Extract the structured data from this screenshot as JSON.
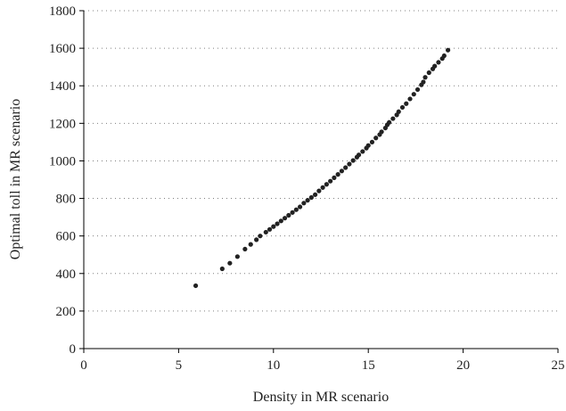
{
  "chart_data": {
    "type": "scatter",
    "title": "",
    "xlabel": "Density in MR scenario",
    "ylabel": "Optimal toll in MR scenario",
    "xlim": [
      0,
      25
    ],
    "ylim": [
      0,
      1800
    ],
    "x_ticks": [
      "0",
      "5",
      "10",
      "15",
      "20",
      "25"
    ],
    "y_ticks": [
      "0",
      "200",
      "400",
      "600",
      "800",
      "1000",
      "1200",
      "1400",
      "1600",
      "1800"
    ],
    "grid": "horizontal-dotted",
    "legend": "none",
    "marker_color": "#222222",
    "series": [
      {
        "x": [
          5.9,
          7.3,
          7.7,
          8.1,
          8.5,
          8.8,
          9.1,
          9.3,
          9.6,
          9.8,
          10.0,
          10.2,
          10.4,
          10.6,
          10.8,
          11.0,
          11.2,
          11.4,
          11.6,
          11.8,
          12.0,
          12.2,
          12.4,
          12.6,
          12.8,
          13.0,
          13.2,
          13.4,
          13.6,
          13.8,
          14.0,
          14.2,
          14.4,
          14.5,
          14.7,
          14.9,
          15.0,
          15.2,
          15.4,
          15.6,
          15.7,
          15.9,
          16.0,
          16.1,
          16.3,
          16.5,
          16.6,
          16.8,
          17.0,
          17.2,
          17.4,
          17.6,
          17.8,
          17.9,
          18.0,
          18.2,
          18.4,
          18.5,
          18.7,
          18.9,
          19.0,
          19.2
        ],
        "y": [
          335,
          425,
          455,
          490,
          530,
          555,
          580,
          600,
          620,
          635,
          650,
          665,
          680,
          695,
          710,
          725,
          740,
          755,
          775,
          790,
          805,
          820,
          840,
          858,
          875,
          892,
          910,
          928,
          946,
          964,
          983,
          1002,
          1020,
          1032,
          1050,
          1068,
          1082,
          1100,
          1122,
          1140,
          1155,
          1175,
          1192,
          1205,
          1225,
          1245,
          1262,
          1285,
          1305,
          1330,
          1355,
          1380,
          1405,
          1420,
          1445,
          1470,
          1490,
          1505,
          1525,
          1545,
          1560,
          1590
        ]
      }
    ]
  }
}
